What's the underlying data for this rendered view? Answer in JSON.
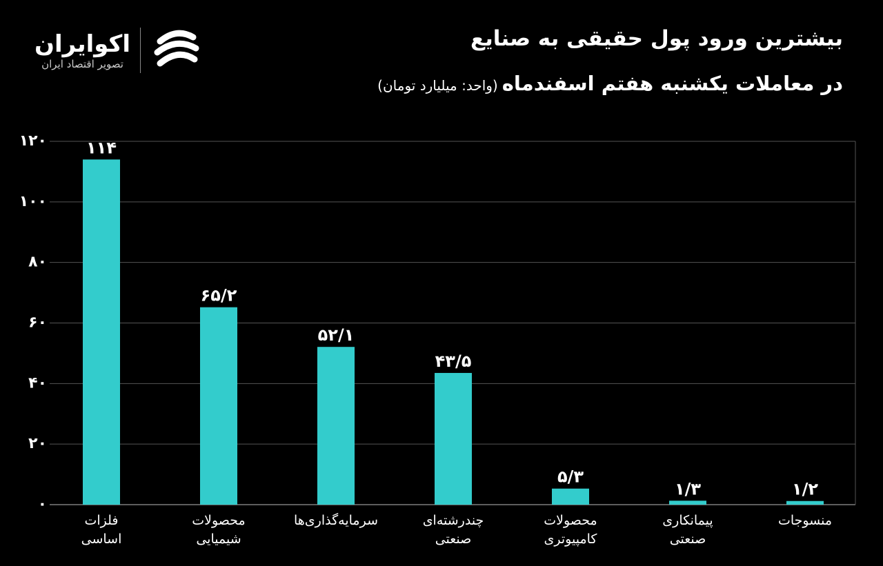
{
  "logo": {
    "name": "اکوایران",
    "tagline": "تصویر اقتصاد ایران"
  },
  "chart_data": {
    "type": "bar",
    "title": "بیشترین ورود پول حقیقی به صنایع",
    "subtitle": "در معاملات یکشنبه هفتم اسفندماه",
    "unit": "(واحد: میلیارد تومان)",
    "categories": [
      "فلزات\nاساسی",
      "محصولات\nشیمیایی",
      "سرمایه‌گذاری‌ها",
      "چندرشته‌ای\nصنعتی",
      "محصولات\nکامپیوتری",
      "پیمانکاری\nصنعتی",
      "منسوجات"
    ],
    "values": [
      114,
      65.2,
      52.1,
      43.5,
      5.3,
      1.3,
      1.2
    ],
    "value_labels": [
      "۱۱۴",
      "۶۵/۲",
      "۵۲/۱",
      "۴۳/۵",
      "۵/۳",
      "۱/۳",
      "۱/۲"
    ],
    "color": "#33cccc",
    "ylim": [
      0,
      120
    ],
    "yticks": [
      {
        "value": 0,
        "label": "۰"
      },
      {
        "value": 20,
        "label": "۲۰"
      },
      {
        "value": 40,
        "label": "۴۰"
      },
      {
        "value": 60,
        "label": "۶۰"
      },
      {
        "value": 80,
        "label": "۸۰"
      },
      {
        "value": 100,
        "label": "۱۰۰"
      },
      {
        "value": 120,
        "label": "۱۲۰"
      }
    ],
    "grid": true
  }
}
